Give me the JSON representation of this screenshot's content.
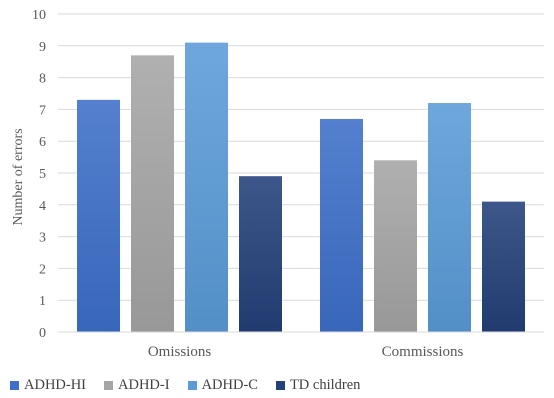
{
  "chart_data": {
    "type": "bar",
    "ylabel": "Number of errors",
    "ylim": [
      0,
      10
    ],
    "yticks": [
      0,
      1,
      2,
      3,
      4,
      5,
      6,
      7,
      8,
      9,
      10
    ],
    "grid": true,
    "legend_position": "bottom",
    "categories": [
      "Omissions",
      "Commissions"
    ],
    "series": [
      {
        "name": "ADHD-HI",
        "values": [
          7.3,
          6.7
        ],
        "color": "#3d6fc9"
      },
      {
        "name": "ADHD-I",
        "values": [
          8.7,
          5.4
        ],
        "color": "#a5a5a5"
      },
      {
        "name": "ADHD-C",
        "values": [
          9.1,
          7.2
        ],
        "color": "#5a9bd8"
      },
      {
        "name": "TD children",
        "values": [
          4.9,
          4.1
        ],
        "color": "#24407a"
      }
    ]
  }
}
